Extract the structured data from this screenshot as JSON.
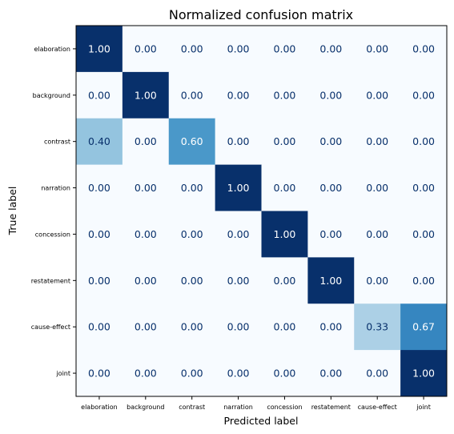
{
  "chart_data": {
    "type": "heatmap",
    "title": "Normalized confusion matrix",
    "xlabel": "Predicted label",
    "ylabel": "True label",
    "x_categories": [
      "elaboration",
      "background",
      "contrast",
      "narration",
      "concession",
      "restatement",
      "cause-effect",
      "joint"
    ],
    "y_categories": [
      "elaboration",
      "background",
      "contrast",
      "narration",
      "concession",
      "restatement",
      "cause-effect",
      "joint"
    ],
    "values": [
      [
        1.0,
        0.0,
        0.0,
        0.0,
        0.0,
        0.0,
        0.0,
        0.0
      ],
      [
        0.0,
        1.0,
        0.0,
        0.0,
        0.0,
        0.0,
        0.0,
        0.0
      ],
      [
        0.4,
        0.0,
        0.6,
        0.0,
        0.0,
        0.0,
        0.0,
        0.0
      ],
      [
        0.0,
        0.0,
        0.0,
        1.0,
        0.0,
        0.0,
        0.0,
        0.0
      ],
      [
        0.0,
        0.0,
        0.0,
        0.0,
        1.0,
        0.0,
        0.0,
        0.0
      ],
      [
        0.0,
        0.0,
        0.0,
        0.0,
        0.0,
        1.0,
        0.0,
        0.0
      ],
      [
        0.0,
        0.0,
        0.0,
        0.0,
        0.0,
        0.0,
        0.33,
        0.67
      ],
      [
        0.0,
        0.0,
        0.0,
        0.0,
        0.0,
        0.0,
        0.0,
        1.0
      ]
    ],
    "value_range": [
      0,
      1
    ],
    "colormap": "Blues",
    "colorbar": false,
    "grid": false
  }
}
